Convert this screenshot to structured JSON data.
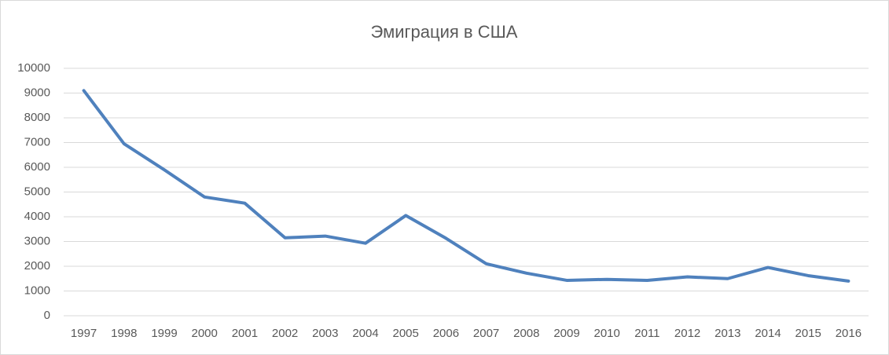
{
  "chart_data": {
    "type": "line",
    "title": "Эмиграция в США",
    "categories": [
      "1997",
      "1998",
      "1999",
      "2000",
      "2001",
      "2002",
      "2003",
      "2004",
      "2005",
      "2006",
      "2007",
      "2008",
      "2009",
      "2010",
      "2011",
      "2012",
      "2013",
      "2014",
      "2015",
      "2016"
    ],
    "values": [
      9100,
      6950,
      5900,
      4800,
      4550,
      3150,
      3220,
      2930,
      4050,
      3130,
      2100,
      1720,
      1430,
      1470,
      1430,
      1570,
      1500,
      1950,
      1620,
      1400
    ],
    "color": "#4f81bd",
    "ylim": [
      0,
      10000
    ],
    "yticks": [
      0,
      1000,
      2000,
      3000,
      4000,
      5000,
      6000,
      7000,
      8000,
      9000,
      10000
    ],
    "grid": true
  }
}
